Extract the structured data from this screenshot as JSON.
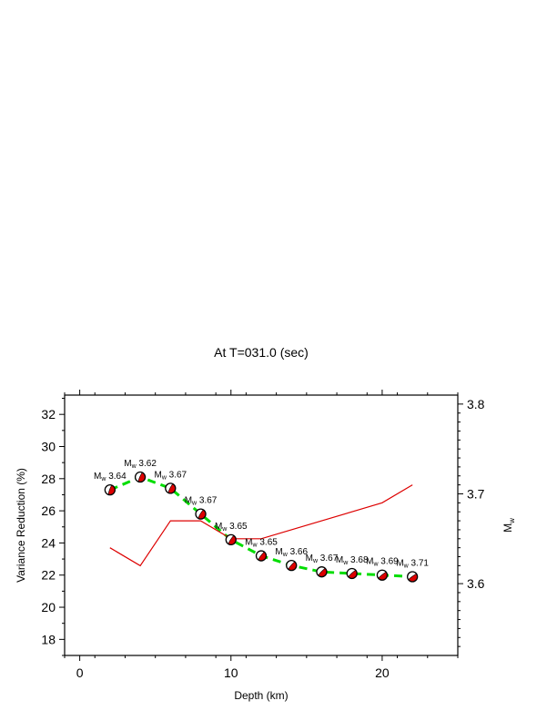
{
  "chart_data": {
    "type": "line",
    "title": "At T=031.0 (sec)",
    "xlabel": "Depth (km)",
    "ylabel": "Variance Reduction (%)",
    "y2label_main": "M",
    "y2label_sub": "w",
    "xlim": [
      -1,
      25
    ],
    "ylim": [
      17,
      33.2
    ],
    "y2lim": [
      3.52,
      3.81
    ],
    "x_ticks": [
      0,
      10,
      20
    ],
    "y_ticks": [
      18,
      20,
      22,
      24,
      26,
      28,
      30,
      32
    ],
    "y2_ticks": [
      3.6,
      3.7,
      3.8
    ],
    "x_tick_labels": [
      "0",
      "10",
      "20"
    ],
    "y_tick_labels": [
      "18",
      "20",
      "22",
      "24",
      "26",
      "28",
      "30",
      "32"
    ],
    "y2_tick_labels": [
      "3.6",
      "3.7",
      "3.8"
    ],
    "grid": false,
    "series": [
      {
        "axis": "left",
        "color": "#00dd00",
        "style": "dashed",
        "x": [
          2,
          4,
          6,
          8,
          10,
          12,
          14,
          16,
          18,
          20,
          22
        ],
        "y": [
          27.3,
          28.1,
          27.4,
          25.8,
          24.2,
          23.2,
          22.6,
          22.2,
          22.1,
          22.0,
          21.9
        ]
      },
      {
        "axis": "right",
        "color": "#dd0000",
        "style": "solid",
        "x": [
          2,
          4,
          6,
          8,
          10,
          12,
          14,
          16,
          18,
          20,
          22
        ],
        "y": [
          3.64,
          3.62,
          3.67,
          3.67,
          3.65,
          3.65,
          3.66,
          3.67,
          3.68,
          3.69,
          3.71
        ]
      }
    ],
    "annotations": [
      {
        "x": 2,
        "mw": "3.64"
      },
      {
        "x": 4,
        "mw": "3.62"
      },
      {
        "x": 6,
        "mw": "3.67"
      },
      {
        "x": 8,
        "mw": "3.67"
      },
      {
        "x": 10,
        "mw": "3.65"
      },
      {
        "x": 12,
        "mw": "3.65"
      },
      {
        "x": 14,
        "mw": "3.66"
      },
      {
        "x": 16,
        "mw": "3.67"
      },
      {
        "x": 18,
        "mw": "3.68"
      },
      {
        "x": 20,
        "mw": "3.69"
      },
      {
        "x": 22,
        "mw": "3.71"
      }
    ],
    "annotation_prefix": "M",
    "annotation_subscript": "w",
    "mechanism_colors": {
      "compression": "#dd0000",
      "dilatation": "#ffffff",
      "outline": "#000000"
    }
  }
}
